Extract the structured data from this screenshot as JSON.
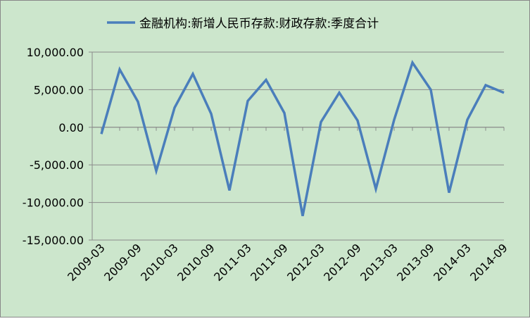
{
  "chart_data": {
    "type": "line",
    "title": "",
    "xlabel": "",
    "ylabel": "",
    "ylim": [
      -15000,
      10000
    ],
    "yticks": [
      10000,
      5000,
      0,
      -5000,
      -10000,
      -15000
    ],
    "ytick_labels": [
      "10,000.00",
      "5,000.00",
      "0.00",
      "-5,000.00",
      "-10,000.00",
      "-15,000.00"
    ],
    "xtick_labels": [
      "2009-03",
      "2009-09",
      "2010-03",
      "2010-09",
      "2011-03",
      "2011-09",
      "2012-03",
      "2012-09",
      "2013-03",
      "2013-09",
      "2014-03",
      "2014-09"
    ],
    "grid": "horizontal",
    "legend_position": "top",
    "background_color": "#cce6cc",
    "line_color": "#4a7ebb",
    "categories": [
      "2009-03",
      "2009-06",
      "2009-09",
      "2009-12",
      "2010-03",
      "2010-06",
      "2010-09",
      "2010-12",
      "2011-03",
      "2011-06",
      "2011-09",
      "2011-12",
      "2012-03",
      "2012-06",
      "2012-09",
      "2012-12",
      "2013-03",
      "2013-06",
      "2013-09",
      "2013-12",
      "2014-03",
      "2014-06",
      "2014-09"
    ],
    "series": [
      {
        "name": "金融机构:新增人民币存款:财政存款:季度合计",
        "values": [
          -900,
          7700,
          3400,
          -5800,
          2600,
          7100,
          1800,
          -8400,
          3500,
          6300,
          1900,
          -11800,
          700,
          4600,
          900,
          -8200,
          1000,
          8600,
          5000,
          -8700,
          1000,
          5600,
          4600
        ]
      }
    ]
  }
}
